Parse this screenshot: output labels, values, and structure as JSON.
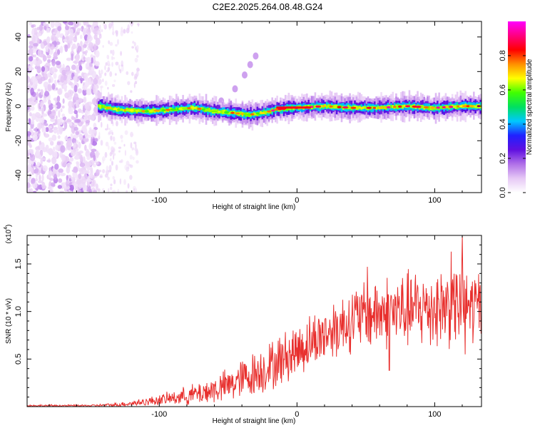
{
  "title": "C2E2.2025.264.08.48.G24",
  "colors": {
    "snr_line": "#e8302e",
    "axis": "#000000",
    "colormap": [
      "#ffffff",
      "#e6c8f5",
      "#b070e8",
      "#6010e0",
      "#2020ff",
      "#00c8ff",
      "#00e060",
      "#40ff00",
      "#ffff00",
      "#ff9000",
      "#ff0000",
      "#ff0080",
      "#ff00ff"
    ]
  },
  "chart_data": [
    {
      "type": "heatmap",
      "title": "C2E2.2025.264.08.48.G24",
      "xlabel": "Height of straight line (km)",
      "ylabel": "Frequency (Hz)",
      "xlim": [
        -196,
        134
      ],
      "ylim": [
        -50,
        49
      ],
      "xticks": [
        -100,
        0,
        100
      ],
      "xtick_labels": [
        "-100",
        "0",
        "100"
      ],
      "yticks": [
        -40,
        -20,
        0,
        20,
        40
      ],
      "ytick_labels": [
        "-40",
        "-20",
        "0",
        "20",
        "40"
      ],
      "ridge_center_hz": [
        [
          -144,
          0
        ],
        [
          -130,
          -2
        ],
        [
          -110,
          -3
        ],
        [
          -90,
          -2
        ],
        [
          -75,
          -1
        ],
        [
          -60,
          -3
        ],
        [
          -45,
          -4
        ],
        [
          -35,
          -5
        ],
        [
          -25,
          -4
        ],
        [
          -15,
          -2
        ],
        [
          -5,
          -1
        ],
        [
          0,
          -1
        ],
        [
          20,
          0
        ],
        [
          40,
          -1
        ],
        [
          60,
          -1
        ],
        [
          80,
          0
        ],
        [
          100,
          -1
        ],
        [
          120,
          0
        ],
        [
          134,
          0
        ]
      ],
      "noise_region_x": [
        -196,
        -144
      ],
      "faint_noise_region_x": [
        -144,
        -115
      ],
      "artifact_blobs": [
        {
          "x": -55,
          "y": 3
        },
        {
          "x": -45,
          "y": 10
        },
        {
          "x": -38,
          "y": 18
        },
        {
          "x": -34,
          "y": 24
        },
        {
          "x": -30,
          "y": 29
        }
      ],
      "colorbar": {
        "label": "Normalized spectral amplitude",
        "ticks": [
          0.0,
          0.2,
          0.4,
          0.6,
          0.8
        ],
        "tick_labels": [
          "0.0",
          "0.2",
          "0.4",
          "0.6",
          "0.8"
        ],
        "range": [
          0,
          1
        ]
      }
    },
    {
      "type": "line",
      "xlabel": "Height of straight line (km)",
      "ylabel": "SNR (10 * v/v)",
      "scale_label": "(x10",
      "scale_exponent": "4",
      "scale_close": ")",
      "xlim": [
        -196,
        134
      ],
      "ylim": [
        0,
        1.8
      ],
      "xticks": [
        -100,
        0,
        100
      ],
      "xtick_labels": [
        "-100",
        "0",
        "100"
      ],
      "yticks": [
        0.5,
        1.0,
        1.5
      ],
      "ytick_labels": [
        "0.5",
        "1.0",
        "1.5"
      ],
      "envelope_x": [
        -196,
        -150,
        -130,
        -110,
        -90,
        -70,
        -50,
        -35,
        -20,
        -5,
        10,
        25,
        40,
        55,
        70,
        85,
        100,
        115,
        134
      ],
      "envelope_mean": [
        0.01,
        0.01,
        0.02,
        0.05,
        0.09,
        0.14,
        0.22,
        0.32,
        0.42,
        0.55,
        0.68,
        0.8,
        0.92,
        0.98,
        1.0,
        1.02,
        1.05,
        1.06,
        1.05
      ],
      "envelope_amp": [
        0.01,
        0.01,
        0.02,
        0.04,
        0.07,
        0.12,
        0.17,
        0.22,
        0.25,
        0.27,
        0.28,
        0.3,
        0.33,
        0.36,
        0.38,
        0.4,
        0.42,
        0.42,
        0.4
      ],
      "peaks": [
        {
          "x": 120,
          "y": 1.8
        },
        {
          "x": 112,
          "y": 1.63
        },
        {
          "x": 51,
          "y": 1.47
        },
        {
          "x": 67,
          "y": 0.38
        },
        {
          "x": 122,
          "y": 0.55
        }
      ]
    }
  ]
}
